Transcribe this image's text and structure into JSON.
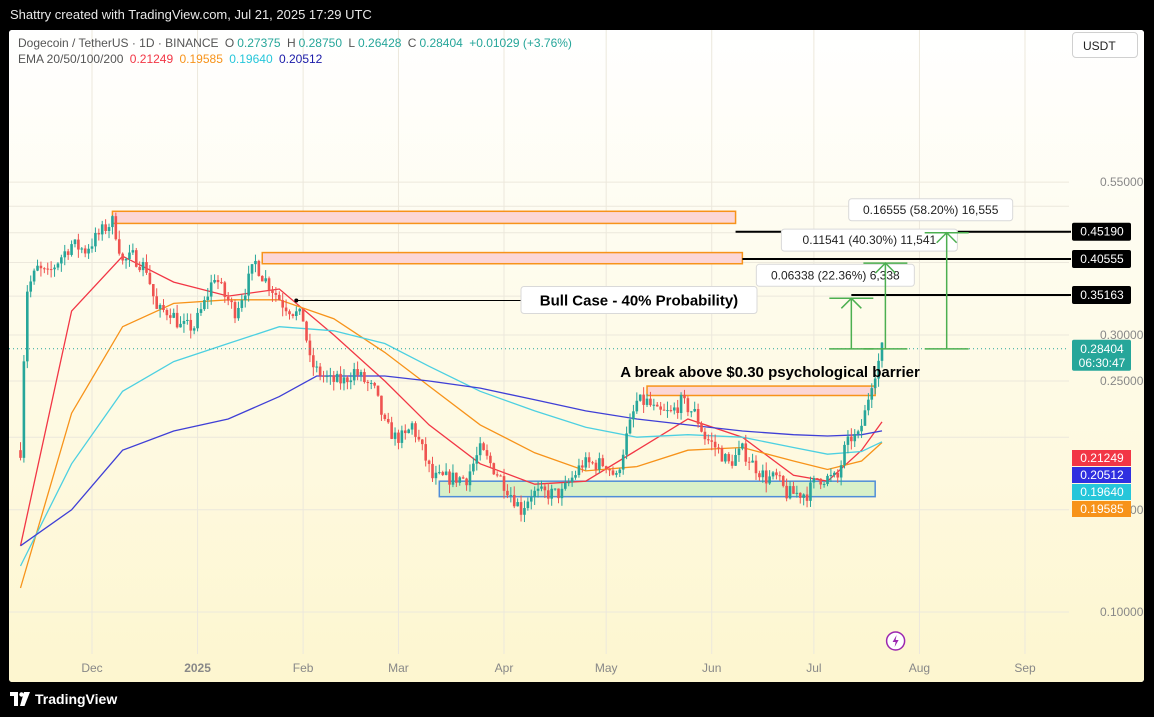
{
  "header": {
    "caption": "Shattry created with TradingView.com, Jul 21, 2025 17:29 UTC"
  },
  "legend": {
    "symbol": "Dogecoin / TetherUS · 1D · BINANCE",
    "open_label": "O",
    "open": "0.27375",
    "high_label": "H",
    "high": "0.28750",
    "low_label": "L",
    "low": "0.26428",
    "close_label": "C",
    "close": "0.28404",
    "change": "+0.01029 (+3.76%)",
    "ema_label": "EMA 20/50/100/200",
    "ema_values": [
      "0.21249",
      "0.19585",
      "0.19640",
      "0.20512"
    ]
  },
  "currency_button": "USDT",
  "footer": {
    "logo_text": "TradingView"
  },
  "chart_data": {
    "type": "candlestick",
    "title": "Dogecoin / TetherUS · 1D · BINANCE",
    "xlabel": "",
    "ylabel": "",
    "ylim": [
      0.07,
      0.56
    ],
    "x_ticks": [
      "Dec",
      "2025",
      "Feb",
      "Mar",
      "Apr",
      "May",
      "Jun",
      "Jul",
      "Aug",
      "Sep"
    ],
    "y_ticks": [
      "0.10000",
      "0.15000",
      "0.25000",
      "0.30000",
      "0.55000"
    ],
    "grid": true,
    "last_price": {
      "value": "0.28404",
      "countdown": "06:30:47",
      "color": "#26a69a"
    },
    "price_path": [
      [
        "2024-11-10",
        0.19
      ],
      [
        "2024-11-12",
        0.36
      ],
      [
        "2024-11-15",
        0.39
      ],
      [
        "2024-11-18",
        0.38
      ],
      [
        "2024-11-22",
        0.41
      ],
      [
        "2024-11-25",
        0.43
      ],
      [
        "2024-11-29",
        0.42
      ],
      [
        "2024-12-02",
        0.44
      ],
      [
        "2024-12-05",
        0.46
      ],
      [
        "2024-12-07",
        0.47
      ],
      [
        "2024-12-08",
        0.45
      ],
      [
        "2024-12-10",
        0.4
      ],
      [
        "2024-12-13",
        0.41
      ],
      [
        "2024-12-17",
        0.39
      ],
      [
        "2024-12-20",
        0.33
      ],
      [
        "2024-12-24",
        0.33
      ],
      [
        "2024-12-27",
        0.31
      ],
      [
        "2024-12-31",
        0.31
      ],
      [
        "2025-01-03",
        0.34
      ],
      [
        "2025-01-06",
        0.38
      ],
      [
        "2025-01-09",
        0.35
      ],
      [
        "2025-01-12",
        0.33
      ],
      [
        "2025-01-15",
        0.36
      ],
      [
        "2025-01-18",
        0.4
      ],
      [
        "2025-01-20",
        0.38
      ],
      [
        "2025-01-23",
        0.36
      ],
      [
        "2025-01-26",
        0.34
      ],
      [
        "2025-01-29",
        0.33
      ],
      [
        "2025-02-01",
        0.32
      ],
      [
        "2025-02-03",
        0.27
      ],
      [
        "2025-02-05",
        0.26
      ],
      [
        "2025-02-09",
        0.25
      ],
      [
        "2025-02-13",
        0.25
      ],
      [
        "2025-02-16",
        0.26
      ],
      [
        "2025-02-19",
        0.25
      ],
      [
        "2025-02-22",
        0.24
      ],
      [
        "2025-02-25",
        0.21
      ],
      [
        "2025-02-28",
        0.2
      ],
      [
        "2025-03-03",
        0.2
      ],
      [
        "2025-03-05",
        0.21
      ],
      [
        "2025-03-08",
        0.19
      ],
      [
        "2025-03-11",
        0.17
      ],
      [
        "2025-03-14",
        0.17
      ],
      [
        "2025-03-18",
        0.17
      ],
      [
        "2025-03-21",
        0.17
      ],
      [
        "2025-03-25",
        0.19
      ],
      [
        "2025-03-28",
        0.18
      ],
      [
        "2025-03-31",
        0.17
      ],
      [
        "2025-04-03",
        0.16
      ],
      [
        "2025-04-06",
        0.15
      ],
      [
        "2025-04-09",
        0.16
      ],
      [
        "2025-04-12",
        0.16
      ],
      [
        "2025-04-15",
        0.16
      ],
      [
        "2025-04-18",
        0.16
      ],
      [
        "2025-04-21",
        0.17
      ],
      [
        "2025-04-24",
        0.18
      ],
      [
        "2025-04-27",
        0.18
      ],
      [
        "2025-05-01",
        0.18
      ],
      [
        "2025-05-04",
        0.17
      ],
      [
        "2025-05-07",
        0.2
      ],
      [
        "2025-05-10",
        0.23
      ],
      [
        "2025-05-13",
        0.23
      ],
      [
        "2025-05-16",
        0.22
      ],
      [
        "2025-05-20",
        0.22
      ],
      [
        "2025-05-23",
        0.23
      ],
      [
        "2025-05-27",
        0.22
      ],
      [
        "2025-05-30",
        0.2
      ],
      [
        "2025-06-03",
        0.19
      ],
      [
        "2025-06-06",
        0.18
      ],
      [
        "2025-06-10",
        0.19
      ],
      [
        "2025-06-13",
        0.18
      ],
      [
        "2025-06-17",
        0.17
      ],
      [
        "2025-06-20",
        0.17
      ],
      [
        "2025-06-23",
        0.16
      ],
      [
        "2025-06-26",
        0.16
      ],
      [
        "2025-06-29",
        0.16
      ],
      [
        "2025-07-02",
        0.17
      ],
      [
        "2025-07-05",
        0.17
      ],
      [
        "2025-07-08",
        0.17
      ],
      [
        "2025-07-10",
        0.19
      ],
      [
        "2025-07-12",
        0.2
      ],
      [
        "2025-07-14",
        0.2
      ],
      [
        "2025-07-16",
        0.22
      ],
      [
        "2025-07-18",
        0.25
      ],
      [
        "2025-07-20",
        0.27
      ],
      [
        "2025-07-21",
        0.284
      ]
    ],
    "series": [
      {
        "name": "EMA 20",
        "value": "0.21249",
        "color": "#f23645",
        "points": [
          [
            "2024-11-10",
            0.13
          ],
          [
            "2024-11-25",
            0.33
          ],
          [
            "2024-12-10",
            0.41
          ],
          [
            "2024-12-25",
            0.37
          ],
          [
            "2025-01-10",
            0.35
          ],
          [
            "2025-01-25",
            0.36
          ],
          [
            "2025-02-10",
            0.3
          ],
          [
            "2025-02-25",
            0.25
          ],
          [
            "2025-03-10",
            0.21
          ],
          [
            "2025-03-25",
            0.18
          ],
          [
            "2025-04-10",
            0.166
          ],
          [
            "2025-04-25",
            0.168
          ],
          [
            "2025-05-10",
            0.19
          ],
          [
            "2025-05-25",
            0.215
          ],
          [
            "2025-06-10",
            0.2
          ],
          [
            "2025-06-25",
            0.172
          ],
          [
            "2025-07-05",
            0.168
          ],
          [
            "2025-07-15",
            0.19
          ],
          [
            "2025-07-21",
            0.2125
          ]
        ]
      },
      {
        "name": "EMA 50",
        "value": "0.19585",
        "color": "#f7931a",
        "points": [
          [
            "2024-11-10",
            0.11
          ],
          [
            "2024-11-25",
            0.22
          ],
          [
            "2024-12-10",
            0.31
          ],
          [
            "2024-12-25",
            0.34
          ],
          [
            "2025-01-10",
            0.345
          ],
          [
            "2025-01-25",
            0.345
          ],
          [
            "2025-02-10",
            0.32
          ],
          [
            "2025-02-25",
            0.28
          ],
          [
            "2025-03-10",
            0.245
          ],
          [
            "2025-03-25",
            0.21
          ],
          [
            "2025-04-10",
            0.188
          ],
          [
            "2025-04-25",
            0.175
          ],
          [
            "2025-05-10",
            0.178
          ],
          [
            "2025-05-25",
            0.19
          ],
          [
            "2025-06-10",
            0.192
          ],
          [
            "2025-06-25",
            0.182
          ],
          [
            "2025-07-05",
            0.176
          ],
          [
            "2025-07-15",
            0.182
          ],
          [
            "2025-07-21",
            0.1959
          ]
        ]
      },
      {
        "name": "EMA 100",
        "value": "0.19640",
        "color": "#4dd0e1",
        "points": [
          [
            "2024-11-10",
            0.12
          ],
          [
            "2024-11-25",
            0.18
          ],
          [
            "2024-12-10",
            0.24
          ],
          [
            "2024-12-25",
            0.27
          ],
          [
            "2025-01-10",
            0.29
          ],
          [
            "2025-01-25",
            0.31
          ],
          [
            "2025-02-10",
            0.305
          ],
          [
            "2025-02-25",
            0.29
          ],
          [
            "2025-03-10",
            0.265
          ],
          [
            "2025-03-25",
            0.24
          ],
          [
            "2025-04-10",
            0.222
          ],
          [
            "2025-04-25",
            0.208
          ],
          [
            "2025-05-10",
            0.2
          ],
          [
            "2025-05-25",
            0.202
          ],
          [
            "2025-06-10",
            0.2
          ],
          [
            "2025-06-25",
            0.192
          ],
          [
            "2025-07-05",
            0.187
          ],
          [
            "2025-07-15",
            0.189
          ],
          [
            "2025-07-21",
            0.1964
          ]
        ]
      },
      {
        "name": "EMA 200",
        "value": "0.20512",
        "color": "#3f3fd6",
        "points": [
          [
            "2024-11-10",
            0.13
          ],
          [
            "2024-11-25",
            0.15
          ],
          [
            "2024-12-10",
            0.19
          ],
          [
            "2024-12-25",
            0.205
          ],
          [
            "2025-01-10",
            0.215
          ],
          [
            "2025-01-25",
            0.235
          ],
          [
            "2025-02-05",
            0.255
          ],
          [
            "2025-02-25",
            0.255
          ],
          [
            "2025-03-10",
            0.25
          ],
          [
            "2025-03-25",
            0.243
          ],
          [
            "2025-04-10",
            0.232
          ],
          [
            "2025-04-25",
            0.222
          ],
          [
            "2025-05-10",
            0.215
          ],
          [
            "2025-05-25",
            0.21
          ],
          [
            "2025-06-10",
            0.205
          ],
          [
            "2025-06-25",
            0.202
          ],
          [
            "2025-07-05",
            0.201
          ],
          [
            "2025-07-15",
            0.202
          ],
          [
            "2025-07-21",
            0.2051
          ]
        ]
      }
    ],
    "zones": [
      {
        "name": "supply-zone-upper",
        "from": "2024-12-07",
        "to": "2025-06-08",
        "low": 0.467,
        "high": 0.49,
        "fill": "#fcd6d6",
        "stroke": "#f7931a"
      },
      {
        "name": "supply-zone-lower",
        "from": "2025-01-20",
        "to": "2025-06-10",
        "low": 0.398,
        "high": 0.416,
        "fill": "#fcd6d6",
        "stroke": "#f7931a"
      },
      {
        "name": "breakout-zone",
        "from": "2025-05-13",
        "to": "2025-07-19",
        "low": 0.236,
        "high": 0.245,
        "fill": "#fcd6d6",
        "stroke": "#f7931a"
      },
      {
        "name": "support-zone",
        "from": "2025-03-13",
        "to": "2025-07-19",
        "low": 0.158,
        "high": 0.168,
        "fill": "#d8f0c8",
        "stroke": "#4f8dd8"
      }
    ],
    "levels": [
      {
        "price": 0.4519,
        "label": "0.45190",
        "from": "2025-06-08"
      },
      {
        "price": 0.40555,
        "label": "0.40555",
        "from": "2025-06-10"
      },
      {
        "price": 0.35163,
        "label": "0.35163",
        "from": "2025-07-12"
      }
    ],
    "bull_case": {
      "text": "Bull Case - 40% Probability)",
      "anchor_date": "2025-01-30",
      "anchor_price": 0.344
    },
    "break_note": "A break above $0.30 psychological barrier",
    "targets": [
      {
        "label": "0.06338 (22.36%) 6,338",
        "date": "2025-07-12",
        "from_price": 0.284,
        "to_price": 0.347
      },
      {
        "label": "0.11541 (40.30%) 11,541",
        "date": "2025-07-22",
        "from_price": 0.284,
        "to_price": 0.399
      },
      {
        "label": "0.16555 (58.20%) 16,555",
        "date": "2025-08-09",
        "from_price": 0.284,
        "to_price": 0.45
      }
    ],
    "ema_tags": [
      {
        "value": "0.21249",
        "color": "#f23645"
      },
      {
        "value": "0.20512",
        "color": "#2f2fe0"
      },
      {
        "value": "0.19640",
        "color": "#26c6da"
      },
      {
        "value": "0.19585",
        "color": "#f7931a"
      }
    ]
  }
}
